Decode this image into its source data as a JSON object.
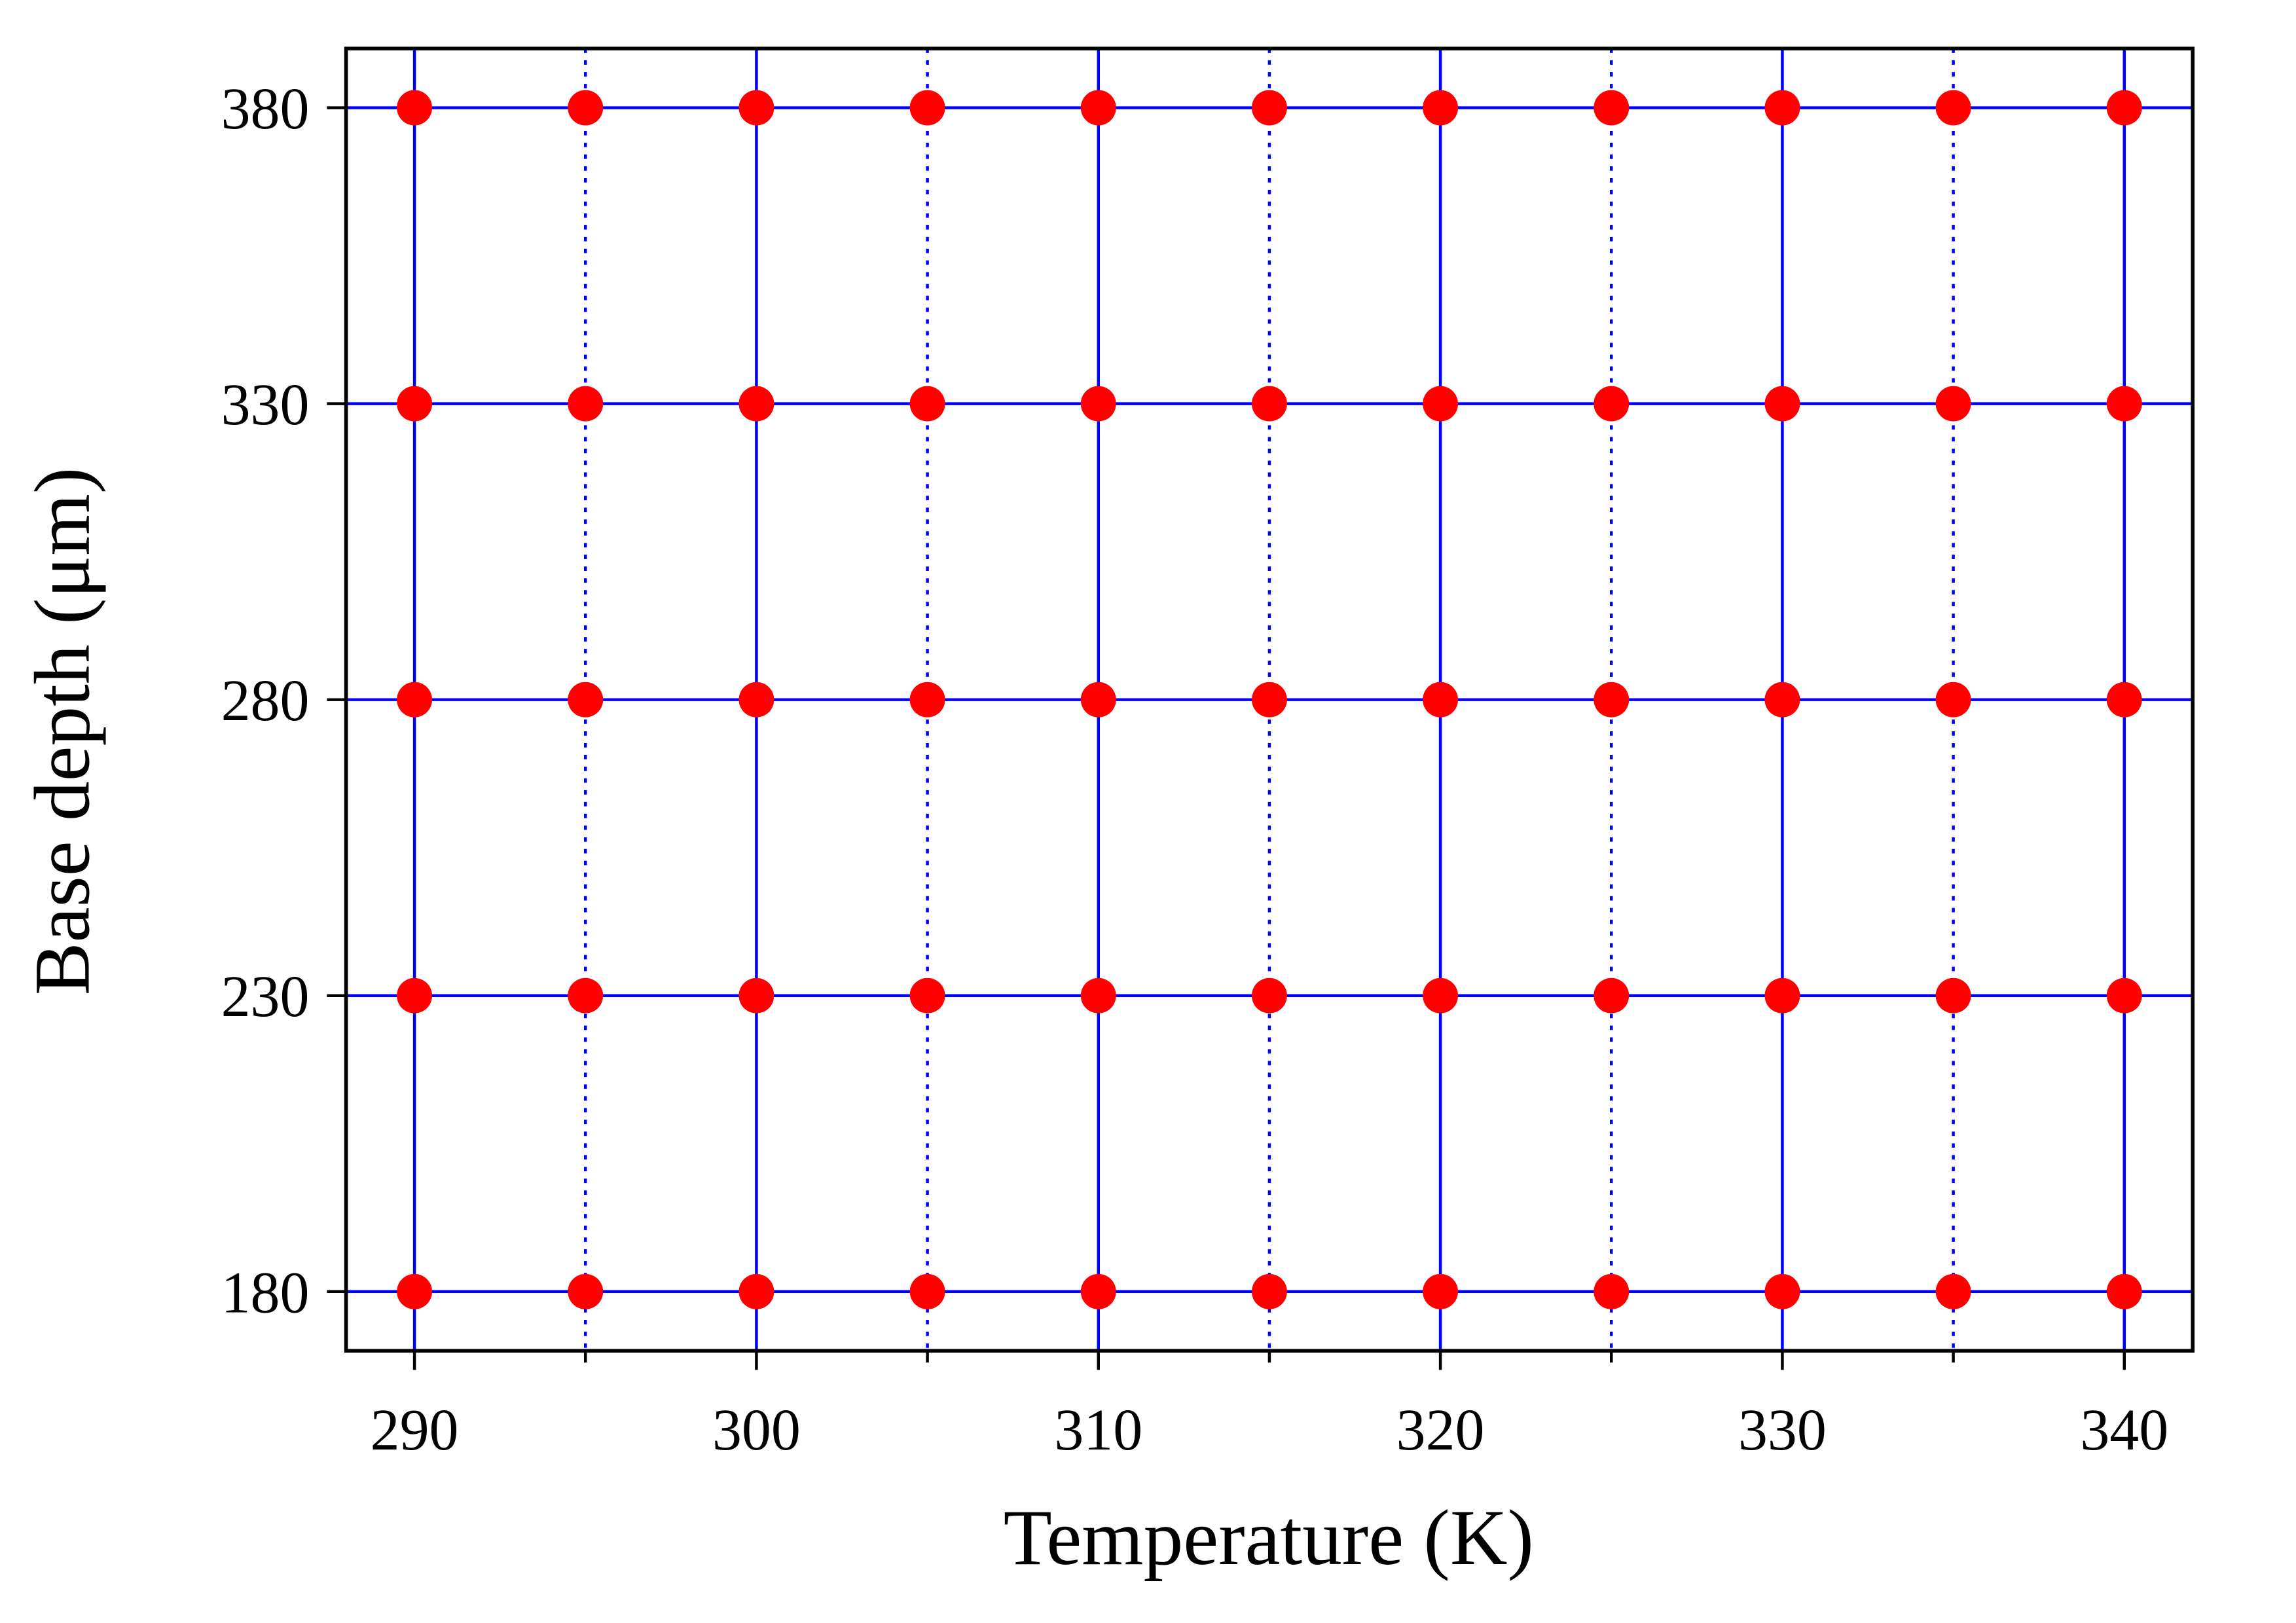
{
  "chart_data": {
    "type": "scatter",
    "x_label": "Temperature (K)",
    "y_label": "Base depth (μm)",
    "x": [
      290,
      295,
      300,
      305,
      310,
      315,
      320,
      325,
      330,
      335,
      340,
      290,
      295,
      300,
      305,
      310,
      315,
      320,
      325,
      330,
      335,
      340,
      290,
      295,
      300,
      305,
      310,
      315,
      320,
      325,
      330,
      335,
      340,
      290,
      295,
      300,
      305,
      310,
      315,
      320,
      325,
      330,
      335,
      340,
      290,
      295,
      300,
      305,
      310,
      315,
      320,
      325,
      330,
      335,
      340
    ],
    "values": [
      380,
      380,
      380,
      380,
      380,
      380,
      380,
      380,
      380,
      380,
      380,
      330,
      330,
      330,
      330,
      330,
      330,
      330,
      330,
      330,
      330,
      330,
      280,
      280,
      280,
      280,
      280,
      280,
      280,
      280,
      280,
      280,
      280,
      230,
      230,
      230,
      230,
      230,
      230,
      230,
      230,
      230,
      230,
      230,
      180,
      180,
      180,
      180,
      180,
      180,
      180,
      180,
      180,
      180,
      180
    ],
    "color": "#ff0000",
    "grid_color": "#0000ff",
    "xlim": [
      288,
      342
    ],
    "ylim": [
      170,
      390
    ],
    "xticks": [
      290,
      300,
      310,
      320,
      330,
      340
    ],
    "xminorticks": [
      295,
      305,
      315,
      325,
      335
    ],
    "yticks": [
      180,
      230,
      280,
      330,
      380
    ],
    "grid": true
  }
}
